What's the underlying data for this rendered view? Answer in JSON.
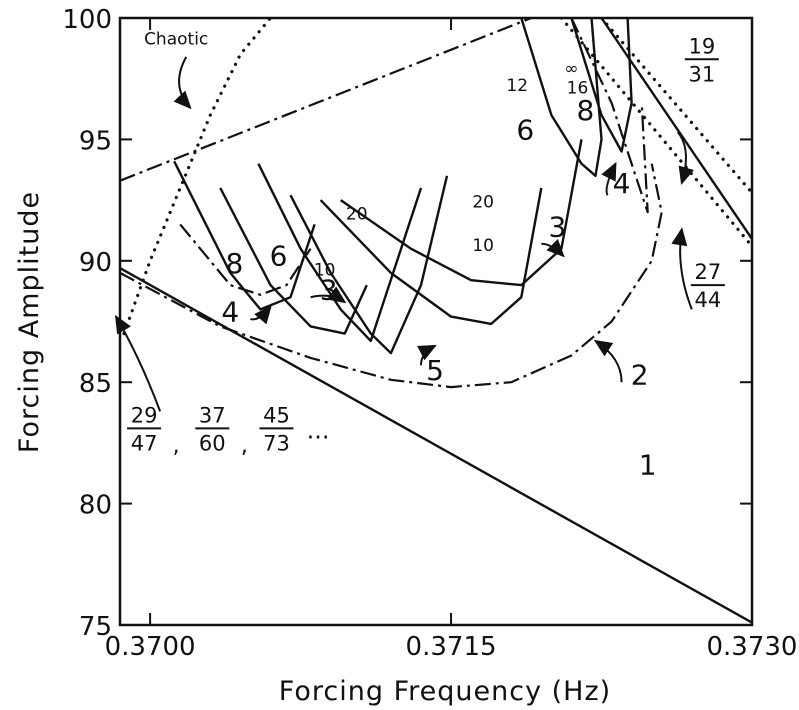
{
  "chart_data": {
    "type": "line",
    "title": "",
    "xlabel": "Forcing  Frequency  (Hz)",
    "ylabel": "Forcing  Amplitude",
    "xlim": [
      0.36985,
      0.373
    ],
    "ylim": [
      75,
      100
    ],
    "x_ticks": [
      {
        "value": 0.37,
        "label": "0.3700"
      },
      {
        "value": 0.3715,
        "label": "0.3715"
      },
      {
        "value": 0.373,
        "label": "0.3730"
      }
    ],
    "y_ticks": [
      {
        "value": 75,
        "label": "75"
      },
      {
        "value": 80,
        "label": "80"
      },
      {
        "value": 85,
        "label": "85"
      },
      {
        "value": 90,
        "label": "90"
      },
      {
        "value": 95,
        "label": "95"
      },
      {
        "value": 100,
        "label": "100"
      }
    ],
    "grid": false,
    "series": [
      {
        "id": "boundary-1",
        "style": "solid",
        "x": [
          0.36985,
          0.373
        ],
        "y": [
          89.7,
          75.1
        ]
      },
      {
        "id": "curve-2",
        "style": "dashdot",
        "x": [
          0.36985,
          0.37035,
          0.3708,
          0.3712,
          0.3715,
          0.3718,
          0.3721,
          0.3723,
          0.3725,
          0.37255,
          0.3725
        ],
        "y": [
          89.5,
          87.3,
          86.0,
          85.1,
          84.8,
          85.0,
          86.1,
          87.5,
          90.0,
          92.0,
          94.0
        ]
      },
      {
        "id": "chaotic-line",
        "style": "dashdot",
        "x": [
          0.36985,
          0.3719
        ],
        "y": [
          93.3,
          100
        ]
      },
      {
        "id": "dotted-left",
        "style": "dotted",
        "x": [
          0.36987,
          0.37,
          0.37015,
          0.3703,
          0.37045,
          0.3706
        ],
        "y": [
          87.0,
          90.0,
          93.0,
          96.0,
          98.5,
          100
        ]
      },
      {
        "id": "curve-4-left",
        "style": "solid",
        "x": [
          0.37012,
          0.3704,
          0.37055,
          0.3707,
          0.37082
        ],
        "y": [
          94.1,
          89.5,
          88.0,
          88.5,
          91.5
        ]
      },
      {
        "id": "curve-4-left-dashdot",
        "style": "dashdot",
        "x": [
          0.37015,
          0.3704,
          0.37055,
          0.37068,
          0.3708
        ],
        "y": [
          91.5,
          89.0,
          88.6,
          89.0,
          90.5
        ]
      },
      {
        "id": "curve-3-left",
        "style": "solid",
        "x": [
          0.37035,
          0.3706,
          0.3708,
          0.37097,
          0.37108
        ],
        "y": [
          93.0,
          89.0,
          87.3,
          87.0,
          89.0
        ]
      },
      {
        "id": "curve-3-mid",
        "style": "solid",
        "x": [
          0.37054,
          0.37075,
          0.37095,
          0.3711,
          0.37135
        ],
        "y": [
          94.0,
          90.5,
          88.0,
          86.7,
          93.0
        ]
      },
      {
        "id": "curve-5",
        "style": "solid",
        "x": [
          0.3707,
          0.3709,
          0.3711,
          0.3712,
          0.37135,
          0.37148
        ],
        "y": [
          92.7,
          89.5,
          87.0,
          86.2,
          89.0,
          93.5
        ]
      },
      {
        "id": "curve-5b",
        "style": "solid",
        "x": [
          0.37085,
          0.3712,
          0.3715,
          0.3717,
          0.37185,
          0.37195
        ],
        "y": [
          92.5,
          89.5,
          87.7,
          87.4,
          88.5,
          93.0
        ]
      },
      {
        "id": "curve-3-right",
        "style": "solid",
        "x": [
          0.37095,
          0.3713,
          0.3716,
          0.37185,
          0.37205,
          0.37215
        ],
        "y": [
          92.5,
          90.5,
          89.2,
          89.0,
          90.5,
          95.0
        ]
      },
      {
        "id": "curve-upper-1",
        "style": "solid",
        "x": [
          0.37185,
          0.372,
          0.37215,
          0.37222,
          0.37225,
          0.3722
        ],
        "y": [
          100,
          96.0,
          94.0,
          93.5,
          95.0,
          100
        ]
      },
      {
        "id": "curve-upper-2",
        "style": "solid",
        "x": [
          0.3721,
          0.37225,
          0.37235,
          0.3724,
          0.37238
        ],
        "y": [
          100,
          96.0,
          94.5,
          96.5,
          100
        ]
      },
      {
        "id": "curve-upper-dashdot",
        "style": "dashdot",
        "x": [
          0.3721,
          0.3723,
          0.37242,
          0.37248,
          0.37245
        ],
        "y": [
          100,
          96.5,
          93.5,
          92.0,
          96.5
        ]
      },
      {
        "id": "line-19-31",
        "style": "solid",
        "x": [
          0.37225,
          0.373
        ],
        "y": [
          100,
          90.9
        ]
      },
      {
        "id": "dotted-27-44",
        "style": "dotted",
        "x": [
          0.37205,
          0.373
        ],
        "y": [
          100,
          90.6
        ]
      },
      {
        "id": "dotted-19-31",
        "style": "dotted",
        "x": [
          0.37225,
          0.373
        ],
        "y": [
          100,
          92.8
        ]
      }
    ],
    "annotations": [
      {
        "text": "Chaotic",
        "x": 0.37013,
        "y": 98.9
      },
      {
        "text": "1",
        "x": 0.37248,
        "y": 81.2
      },
      {
        "text": "2",
        "x": 0.37244,
        "y": 84.9
      },
      {
        "text": "3",
        "x": 0.37089,
        "y": 88.4
      },
      {
        "text": "3",
        "x": 0.37203,
        "y": 91.0
      },
      {
        "text": "4",
        "x": 0.3704,
        "y": 87.5
      },
      {
        "text": "4",
        "x": 0.37235,
        "y": 92.8
      },
      {
        "text": "5",
        "x": 0.37142,
        "y": 85.1
      },
      {
        "text": "6",
        "x": 0.37064,
        "y": 89.8
      },
      {
        "text": "8",
        "x": 0.37042,
        "y": 89.5
      },
      {
        "text": "10",
        "x": 0.37087,
        "y": 89.4
      },
      {
        "text": "20",
        "x": 0.37103,
        "y": 91.7
      },
      {
        "text": "20",
        "x": 0.37166,
        "y": 92.2
      },
      {
        "text": "10",
        "x": 0.37166,
        "y": 90.4
      },
      {
        "text": "6",
        "x": 0.37187,
        "y": 95.0
      },
      {
        "text": "8",
        "x": 0.37217,
        "y": 95.8
      },
      {
        "text": "12",
        "x": 0.37183,
        "y": 97.0
      },
      {
        "text": "∞",
        "x": 0.3721,
        "y": 97.7
      },
      {
        "text": "16",
        "x": 0.37213,
        "y": 96.9
      }
    ],
    "fraction_labels": [
      {
        "num": "19",
        "den": "31",
        "x": 0.37275,
        "y": 98.3
      },
      {
        "num": "27",
        "den": "44",
        "x": 0.37278,
        "y": 89.0
      },
      {
        "num": "29",
        "den": "47",
        "x": 0.36997,
        "y": 83.1
      },
      {
        "num": "37",
        "den": "60",
        "x": 0.37031,
        "y": 83.1
      },
      {
        "num": "45",
        "den": "73",
        "x": 0.37063,
        "y": 83.1
      }
    ],
    "trailing_text": "...",
    "separators": [
      ",",
      ","
    ]
  }
}
